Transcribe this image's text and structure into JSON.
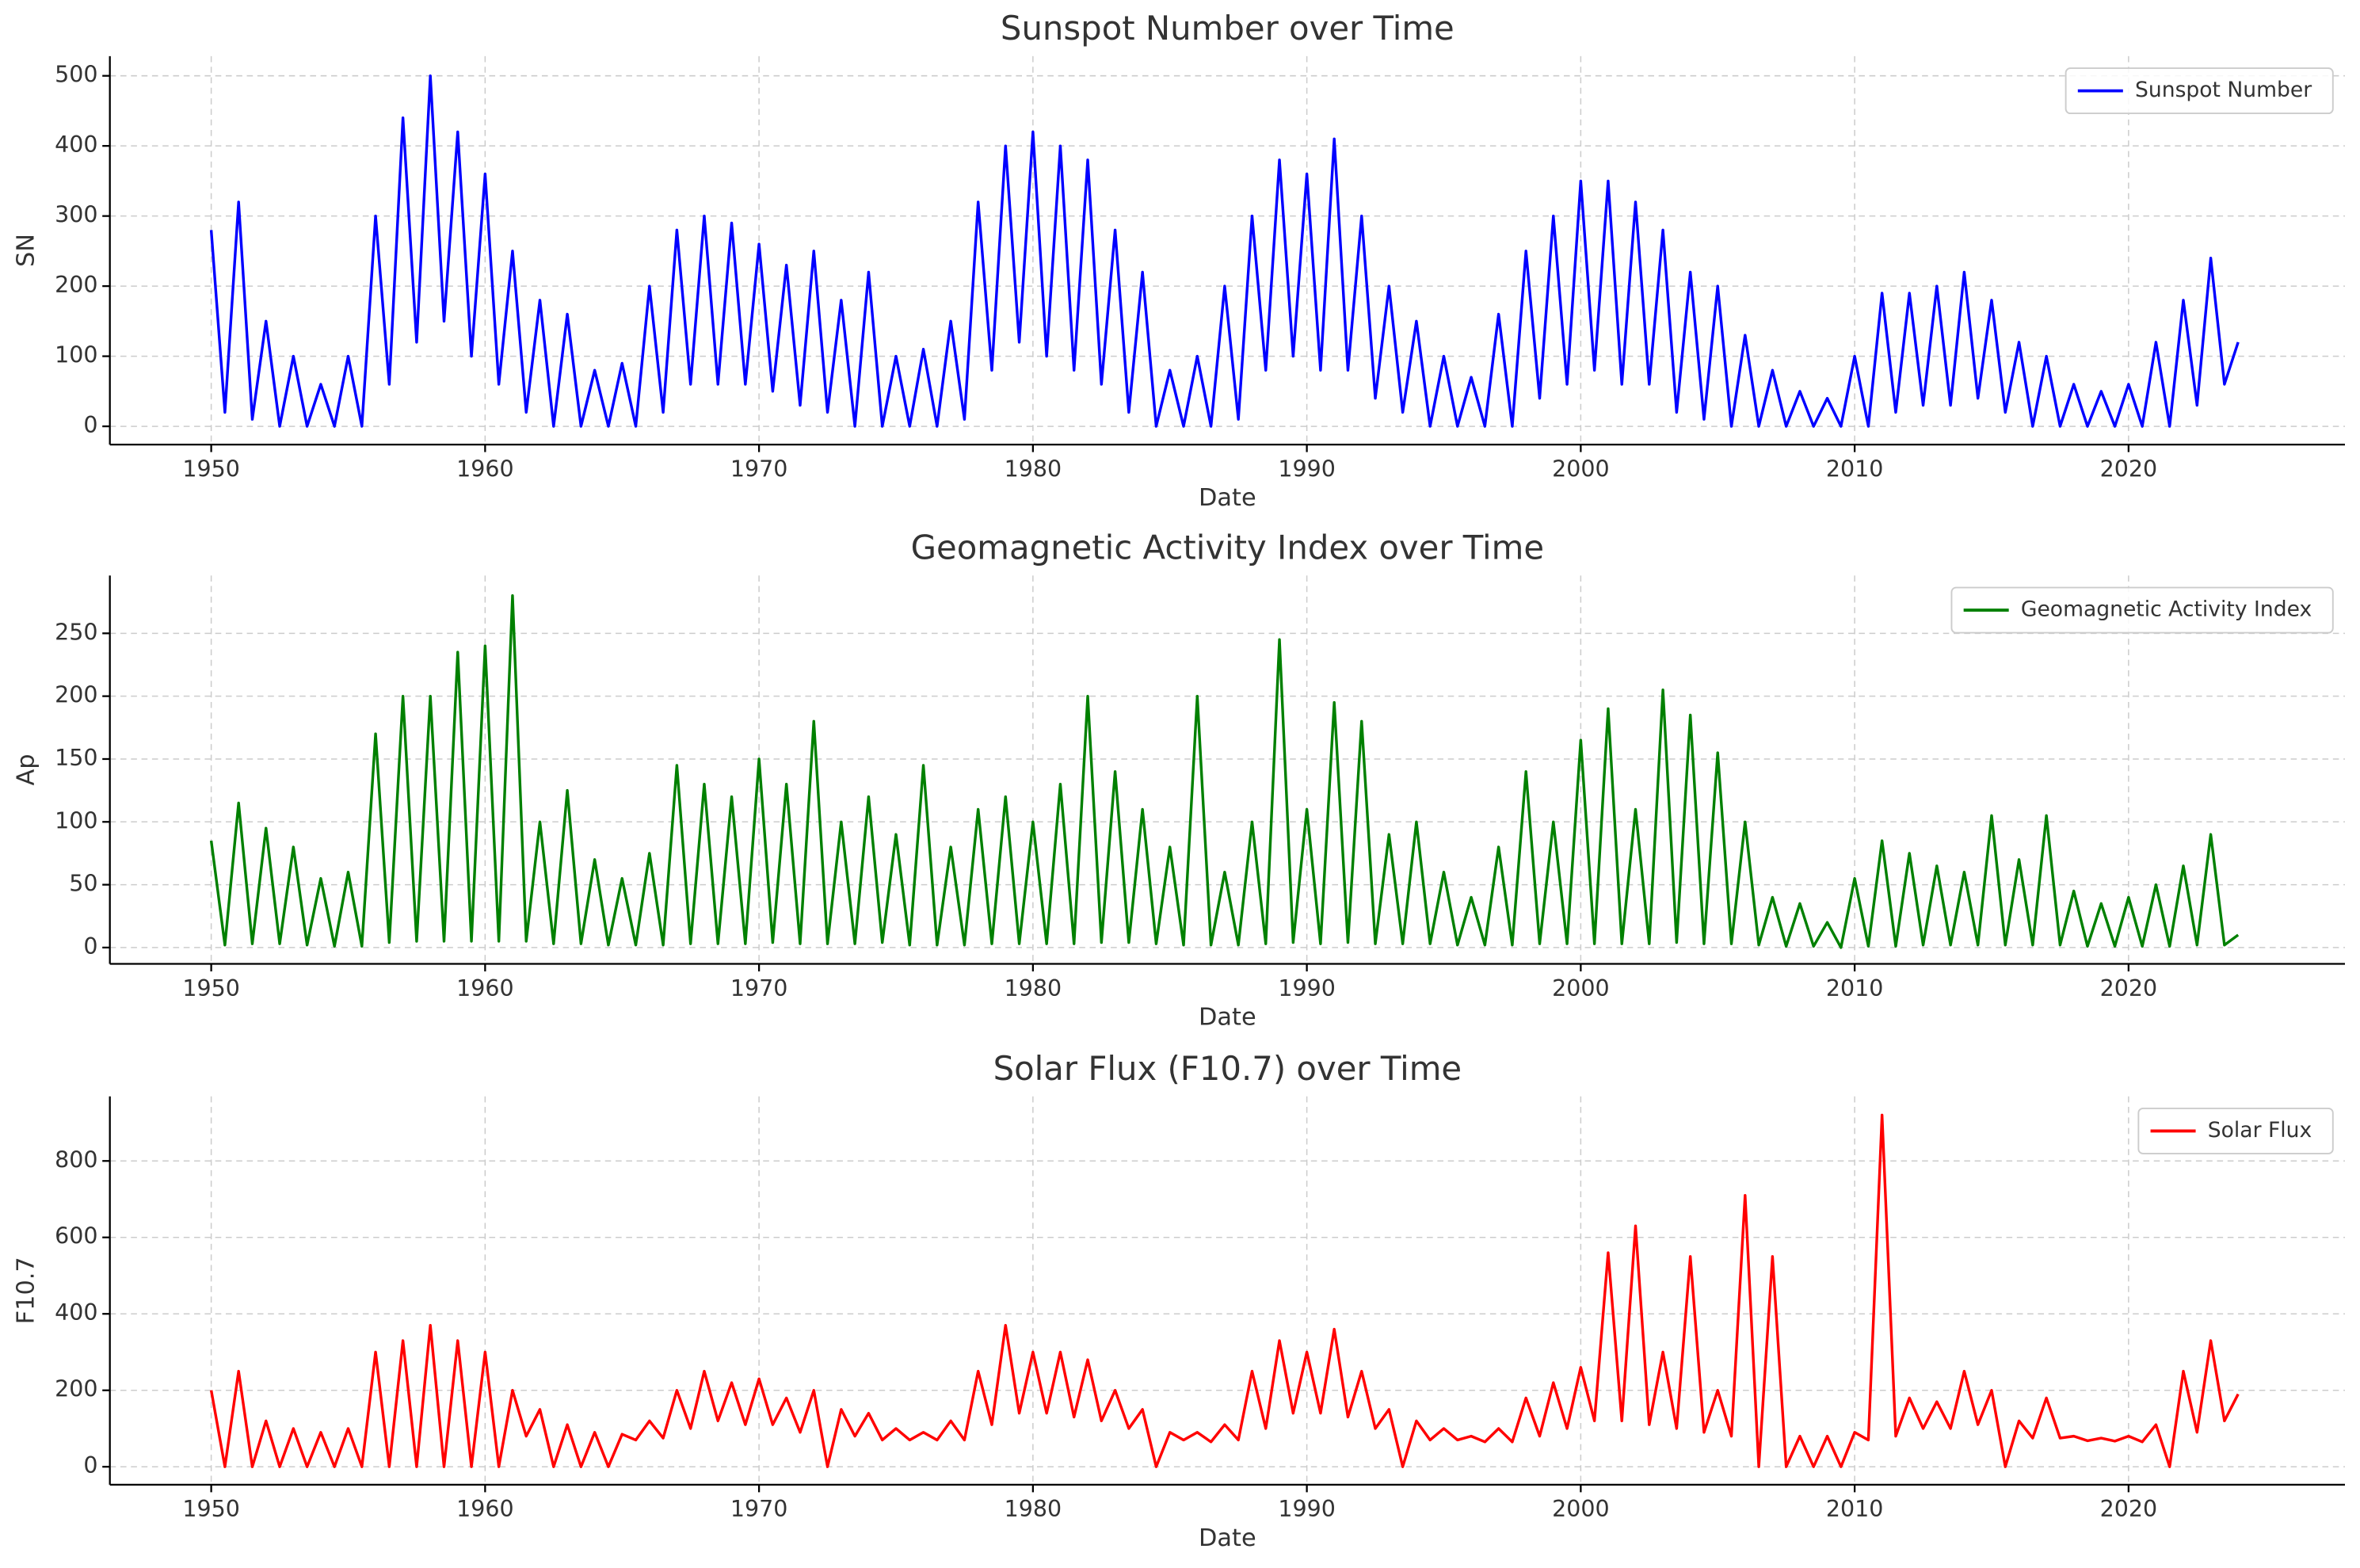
{
  "chart_data": [
    {
      "type": "line",
      "title": "Sunspot Number over Time",
      "x_label": "Date",
      "y_label": "SN",
      "x": [
        1950,
        1950.5,
        1951,
        1951.5,
        1952,
        1952.5,
        1953,
        1953.5,
        1954,
        1954.5,
        1955,
        1955.5,
        1956,
        1956.5,
        1957,
        1957.5,
        1958,
        1958.5,
        1959,
        1959.5,
        1960,
        1960.5,
        1961,
        1961.5,
        1962,
        1962.5,
        1963,
        1963.5,
        1964,
        1964.5,
        1965,
        1965.5,
        1966,
        1966.5,
        1967,
        1967.5,
        1968,
        1968.5,
        1969,
        1969.5,
        1970,
        1970.5,
        1971,
        1971.5,
        1972,
        1972.5,
        1973,
        1973.5,
        1974,
        1974.5,
        1975,
        1975.5,
        1976,
        1976.5,
        1977,
        1977.5,
        1978,
        1978.5,
        1979,
        1979.5,
        1980,
        1980.5,
        1981,
        1981.5,
        1982,
        1982.5,
        1983,
        1983.5,
        1984,
        1984.5,
        1985,
        1985.5,
        1986,
        1986.5,
        1987,
        1987.5,
        1988,
        1988.5,
        1989,
        1989.5,
        1990,
        1990.5,
        1991,
        1991.5,
        1992,
        1992.5,
        1993,
        1993.5,
        1994,
        1994.5,
        1995,
        1995.5,
        1996,
        1996.5,
        1997,
        1997.5,
        1998,
        1998.5,
        1999,
        1999.5,
        2000,
        2000.5,
        2001,
        2001.5,
        2002,
        2002.5,
        2003,
        2003.5,
        2004,
        2004.5,
        2005,
        2005.5,
        2006,
        2006.5,
        2007,
        2007.5,
        2008,
        2008.5,
        2009,
        2009.5,
        2010,
        2010.5,
        2011,
        2011.5,
        2012,
        2012.5,
        2013,
        2013.5,
        2014,
        2014.5,
        2015,
        2015.5,
        2016,
        2016.5,
        2017,
        2017.5,
        2018,
        2018.5,
        2019,
        2019.5,
        2020,
        2020.5,
        2021,
        2021.5,
        2022,
        2022.5,
        2023,
        2023.5,
        2024
      ],
      "series": [
        {
          "name": "Sunspot Number",
          "color": "#0000ff",
          "values": [
            280,
            20,
            320,
            10,
            150,
            0,
            100,
            0,
            60,
            0,
            100,
            0,
            300,
            60,
            440,
            120,
            500,
            150,
            420,
            100,
            360,
            60,
            250,
            20,
            180,
            0,
            160,
            0,
            80,
            0,
            90,
            0,
            200,
            20,
            280,
            60,
            300,
            60,
            290,
            60,
            260,
            50,
            230,
            30,
            250,
            20,
            180,
            0,
            220,
            0,
            100,
            0,
            110,
            0,
            150,
            10,
            320,
            80,
            400,
            120,
            420,
            100,
            400,
            80,
            380,
            60,
            280,
            20,
            220,
            0,
            80,
            0,
            100,
            0,
            200,
            10,
            300,
            80,
            380,
            100,
            360,
            80,
            410,
            80,
            300,
            40,
            200,
            20,
            150,
            0,
            100,
            0,
            70,
            0,
            160,
            0,
            250,
            40,
            300,
            60,
            350,
            80,
            350,
            60,
            320,
            60,
            280,
            20,
            220,
            10,
            200,
            0,
            130,
            0,
            80,
            0,
            50,
            0,
            40,
            0,
            100,
            0,
            190,
            20,
            190,
            30,
            200,
            30,
            220,
            40,
            180,
            20,
            120,
            0,
            100,
            0,
            60,
            0,
            50,
            0,
            60,
            0,
            120,
            0,
            180,
            30,
            240,
            60,
            120
          ]
        }
      ],
      "xlim": [
        1946.3,
        2027.9
      ],
      "xticks": [
        1950,
        1960,
        1970,
        1980,
        1990,
        2000,
        2010,
        2020
      ],
      "ylim": [
        -26,
        528
      ],
      "yticks": [
        0,
        100,
        200,
        300,
        400,
        500
      ],
      "grid": true,
      "legend": "upper right"
    },
    {
      "type": "line",
      "title": "Geomagnetic Activity Index over Time",
      "x_label": "Date",
      "y_label": "Ap",
      "x": [
        1950,
        1950.5,
        1951,
        1951.5,
        1952,
        1952.5,
        1953,
        1953.5,
        1954,
        1954.5,
        1955,
        1955.5,
        1956,
        1956.5,
        1957,
        1957.5,
        1958,
        1958.5,
        1959,
        1959.5,
        1960,
        1960.5,
        1961,
        1961.5,
        1962,
        1962.5,
        1963,
        1963.5,
        1964,
        1964.5,
        1965,
        1965.5,
        1966,
        1966.5,
        1967,
        1967.5,
        1968,
        1968.5,
        1969,
        1969.5,
        1970,
        1970.5,
        1971,
        1971.5,
        1972,
        1972.5,
        1973,
        1973.5,
        1974,
        1974.5,
        1975,
        1975.5,
        1976,
        1976.5,
        1977,
        1977.5,
        1978,
        1978.5,
        1979,
        1979.5,
        1980,
        1980.5,
        1981,
        1981.5,
        1982,
        1982.5,
        1983,
        1983.5,
        1984,
        1984.5,
        1985,
        1985.5,
        1986,
        1986.5,
        1987,
        1987.5,
        1988,
        1988.5,
        1989,
        1989.5,
        1990,
        1990.5,
        1991,
        1991.5,
        1992,
        1992.5,
        1993,
        1993.5,
        1994,
        1994.5,
        1995,
        1995.5,
        1996,
        1996.5,
        1997,
        1997.5,
        1998,
        1998.5,
        1999,
        1999.5,
        2000,
        2000.5,
        2001,
        2001.5,
        2002,
        2002.5,
        2003,
        2003.5,
        2004,
        2004.5,
        2005,
        2005.5,
        2006,
        2006.5,
        2007,
        2007.5,
        2008,
        2008.5,
        2009,
        2009.5,
        2010,
        2010.5,
        2011,
        2011.5,
        2012,
        2012.5,
        2013,
        2013.5,
        2014,
        2014.5,
        2015,
        2015.5,
        2016,
        2016.5,
        2017,
        2017.5,
        2018,
        2018.5,
        2019,
        2019.5,
        2020,
        2020.5,
        2021,
        2021.5,
        2022,
        2022.5,
        2023,
        2023.5,
        2024
      ],
      "series": [
        {
          "name": "Geomagnetic Activity Index",
          "color": "#008000",
          "values": [
            85,
            2,
            115,
            3,
            95,
            3,
            80,
            2,
            55,
            1,
            60,
            1,
            170,
            4,
            200,
            5,
            200,
            5,
            235,
            5,
            240,
            5,
            280,
            5,
            100,
            3,
            125,
            3,
            70,
            2,
            55,
            2,
            75,
            2,
            145,
            3,
            130,
            3,
            120,
            3,
            150,
            4,
            130,
            3,
            180,
            3,
            100,
            3,
            120,
            4,
            90,
            2,
            145,
            2,
            80,
            2,
            110,
            3,
            120,
            3,
            100,
            3,
            130,
            3,
            200,
            4,
            140,
            4,
            110,
            3,
            80,
            2,
            200,
            2,
            60,
            2,
            100,
            3,
            245,
            4,
            110,
            3,
            195,
            4,
            180,
            3,
            90,
            3,
            100,
            3,
            60,
            2,
            40,
            2,
            80,
            2,
            140,
            3,
            100,
            3,
            165,
            3,
            190,
            3,
            110,
            3,
            205,
            4,
            185,
            3,
            155,
            3,
            100,
            2,
            40,
            1,
            35,
            1,
            20,
            0,
            55,
            1,
            85,
            1,
            75,
            2,
            65,
            2,
            60,
            2,
            105,
            2,
            70,
            2,
            105,
            2,
            45,
            1,
            35,
            1,
            40,
            1,
            50,
            1,
            65,
            2,
            90,
            2,
            10
          ]
        }
      ],
      "xlim": [
        1946.3,
        2027.9
      ],
      "xticks": [
        1950,
        1960,
        1970,
        1980,
        1990,
        2000,
        2010,
        2020
      ],
      "ylim": [
        -13,
        296
      ],
      "yticks": [
        0,
        50,
        100,
        150,
        200,
        250
      ],
      "grid": true,
      "legend": "upper right"
    },
    {
      "type": "line",
      "title": "Solar Flux (F10.7) over Time",
      "x_label": "Date",
      "y_label": "F10.7",
      "x": [
        1950,
        1950.5,
        1951,
        1951.5,
        1952,
        1952.5,
        1953,
        1953.5,
        1954,
        1954.5,
        1955,
        1955.5,
        1956,
        1956.5,
        1957,
        1957.5,
        1958,
        1958.5,
        1959,
        1959.5,
        1960,
        1960.5,
        1961,
        1961.5,
        1962,
        1962.5,
        1963,
        1963.5,
        1964,
        1964.5,
        1965,
        1965.5,
        1966,
        1966.5,
        1967,
        1967.5,
        1968,
        1968.5,
        1969,
        1969.5,
        1970,
        1970.5,
        1971,
        1971.5,
        1972,
        1972.5,
        1973,
        1973.5,
        1974,
        1974.5,
        1975,
        1975.5,
        1976,
        1976.5,
        1977,
        1977.5,
        1978,
        1978.5,
        1979,
        1979.5,
        1980,
        1980.5,
        1981,
        1981.5,
        1982,
        1982.5,
        1983,
        1983.5,
        1984,
        1984.5,
        1985,
        1985.5,
        1986,
        1986.5,
        1987,
        1987.5,
        1988,
        1988.5,
        1989,
        1989.5,
        1990,
        1990.5,
        1991,
        1991.5,
        1992,
        1992.5,
        1993,
        1993.5,
        1994,
        1994.5,
        1995,
        1995.5,
        1996,
        1996.5,
        1997,
        1997.5,
        1998,
        1998.5,
        1999,
        1999.5,
        2000,
        2000.5,
        2001,
        2001.5,
        2002,
        2002.5,
        2003,
        2003.5,
        2004,
        2004.5,
        2005,
        2005.5,
        2006,
        2006.5,
        2007,
        2007.5,
        2008,
        2008.5,
        2009,
        2009.5,
        2010,
        2010.5,
        2011,
        2011.5,
        2012,
        2012.5,
        2013,
        2013.5,
        2014,
        2014.5,
        2015,
        2015.5,
        2016,
        2016.5,
        2017,
        2017.5,
        2018,
        2018.5,
        2019,
        2019.5,
        2020,
        2020.5,
        2021,
        2021.5,
        2022,
        2022.5,
        2023,
        2023.5,
        2024
      ],
      "series": [
        {
          "name": "Solar Flux",
          "color": "#ff0000",
          "values": [
            200,
            0,
            250,
            0,
            120,
            0,
            100,
            0,
            90,
            0,
            100,
            0,
            300,
            0,
            330,
            0,
            370,
            0,
            330,
            0,
            300,
            0,
            200,
            80,
            150,
            0,
            110,
            0,
            90,
            0,
            85,
            70,
            120,
            75,
            200,
            100,
            250,
            120,
            220,
            110,
            230,
            110,
            180,
            90,
            200,
            0,
            150,
            80,
            140,
            70,
            100,
            70,
            90,
            70,
            120,
            70,
            250,
            110,
            370,
            140,
            300,
            140,
            300,
            130,
            280,
            120,
            200,
            100,
            150,
            0,
            90,
            70,
            90,
            65,
            110,
            70,
            250,
            100,
            330,
            140,
            300,
            140,
            360,
            130,
            250,
            100,
            150,
            0,
            120,
            70,
            100,
            70,
            80,
            65,
            100,
            65,
            180,
            80,
            220,
            100,
            260,
            120,
            560,
            120,
            630,
            110,
            300,
            100,
            550,
            90,
            200,
            80,
            710,
            0,
            550,
            0,
            80,
            0,
            80,
            0,
            90,
            70,
            920,
            80,
            180,
            100,
            170,
            100,
            250,
            110,
            200,
            0,
            120,
            75,
            180,
            75,
            80,
            68,
            75,
            67,
            80,
            65,
            110,
            0,
            250,
            90,
            330,
            120,
            190
          ]
        }
      ],
      "xlim": [
        1946.3,
        2027.9
      ],
      "xticks": [
        1950,
        1960,
        1970,
        1980,
        1990,
        2000,
        2010,
        2020
      ],
      "ylim": [
        -47,
        969
      ],
      "yticks": [
        0,
        200,
        400,
        600,
        800
      ],
      "grid": true,
      "legend": "upper right"
    }
  ]
}
